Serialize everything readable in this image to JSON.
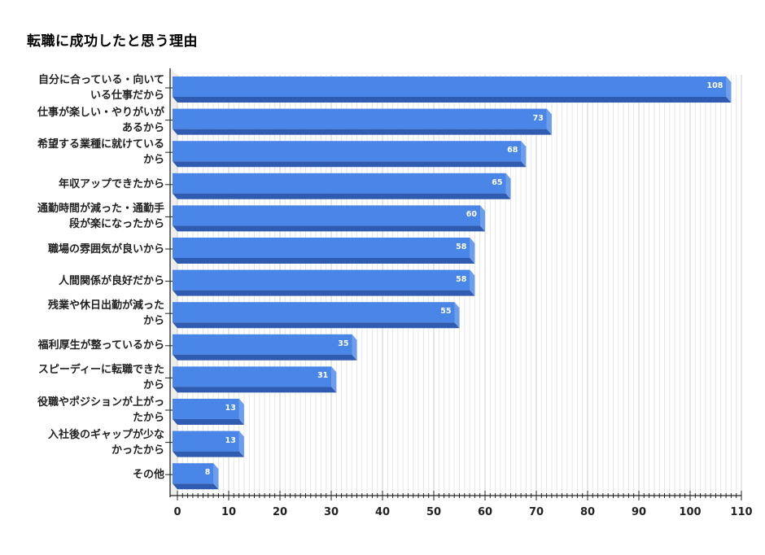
{
  "title": "転職に成功したと思う理由",
  "colors": {
    "bar_front": "#4a86e8",
    "bar_bottom": "#2f5bb0",
    "bar_side": "#6d9eeb",
    "grid": "#dddddd",
    "axis": "#444444"
  },
  "chart_data": {
    "type": "bar",
    "orientation": "horizontal",
    "style": "3d",
    "title": "転職に成功したと思う理由",
    "categories": [
      "自分に合っている・向いている仕事だから",
      "仕事が楽しい・やりがいがあるから",
      "希望する業種に就けているから",
      "年収アップできたから",
      "通勤時間が減った・通勤手段が楽になったから",
      "職場の雰囲気が良いから",
      "人間関係が良好だから",
      "残業や休日出勤が減ったから",
      "福利厚生が整っているから",
      "スピーディーに転職できたから",
      "役職やポジションが上がったから",
      "入社後のギャップが少なかったから",
      "その他"
    ],
    "category_lines": [
      [
        "自分に合っている・向いて",
        "いる仕事だから"
      ],
      [
        "仕事が楽しい・やりがいが",
        "あるから"
      ],
      [
        "希望する業種に就けている",
        "から"
      ],
      [
        "年収アップできたから"
      ],
      [
        "通勤時間が減った・通勤手",
        "段が楽になったから"
      ],
      [
        "職場の雰囲気が良いから"
      ],
      [
        "人間関係が良好だから"
      ],
      [
        "残業や休日出勤が減った",
        "から"
      ],
      [
        "福利厚生が整っているから"
      ],
      [
        "スピーディーに転職できた",
        "から"
      ],
      [
        "役職やポジションが上がっ",
        "たから"
      ],
      [
        "入社後のギャップが少な",
        "かったから"
      ],
      [
        "その他"
      ]
    ],
    "values": [
      108,
      73,
      68,
      65,
      60,
      58,
      58,
      55,
      35,
      31,
      13,
      13,
      8
    ],
    "xlabel": "",
    "ylabel": "",
    "xlim": [
      0,
      110
    ],
    "xticks": [
      0,
      10,
      20,
      30,
      40,
      50,
      60,
      70,
      80,
      90,
      100,
      110
    ],
    "minor_ticks_per_major": 10,
    "grid": true,
    "legend": null,
    "data_labels": true
  }
}
